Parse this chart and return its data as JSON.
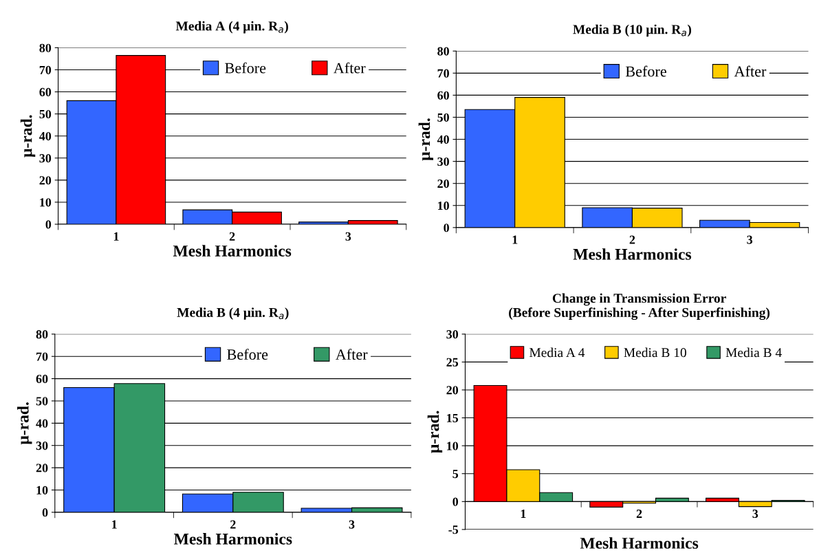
{
  "chart_data": [
    {
      "type": "bar",
      "title": "Media A (4 μin. R$_{a}$)",
      "xlabel": "Mesh Harmonics",
      "ylabel": "μ-rad.",
      "categories": [
        "1",
        "2",
        "3"
      ],
      "ylim": [
        0,
        80
      ],
      "yticks": [
        0,
        10,
        20,
        30,
        40,
        50,
        60,
        70,
        80
      ],
      "grid": "y",
      "legend": "top",
      "series": [
        {
          "name": "Before",
          "color": "#3366ff",
          "values": [
            56,
            6.5,
            1
          ]
        },
        {
          "name": "After",
          "color": "#ff0000",
          "values": [
            76.5,
            5.5,
            1.7
          ]
        }
      ]
    },
    {
      "type": "bar",
      "title": "Media B (10 μin. R$_{a}$)",
      "xlabel": "Mesh Harmonics",
      "ylabel": "μ-rad.",
      "categories": [
        "1",
        "2",
        "3"
      ],
      "ylim": [
        0,
        80
      ],
      "yticks": [
        0,
        10,
        20,
        30,
        40,
        50,
        60,
        70,
        80
      ],
      "grid": "y",
      "legend": "top",
      "series": [
        {
          "name": "Before",
          "color": "#3366ff",
          "values": [
            53.5,
            9,
            3.3
          ]
        },
        {
          "name": "After",
          "color": "#ffcc00",
          "values": [
            59,
            8.8,
            2.3
          ]
        }
      ]
    },
    {
      "type": "bar",
      "title": "Media B (4 μin. R$_{a}$)",
      "xlabel": "Mesh Harmonics",
      "ylabel": "μ-rad.",
      "categories": [
        "1",
        "2",
        "3"
      ],
      "ylim": [
        0,
        80
      ],
      "yticks": [
        0,
        10,
        20,
        30,
        40,
        50,
        60,
        70,
        80
      ],
      "grid": "y",
      "legend": "top",
      "series": [
        {
          "name": "Before",
          "color": "#3366ff",
          "values": [
            56,
            8.2,
            1.8
          ]
        },
        {
          "name": "After",
          "color": "#339966",
          "values": [
            57.8,
            9,
            2
          ]
        }
      ]
    },
    {
      "type": "bar",
      "title": "Change in Transmission Error",
      "subtitle": "(Before Superfinishing - After Superfinishing)",
      "xlabel": "Mesh Harmonics",
      "ylabel": "μ-rad.",
      "categories": [
        "1",
        "2",
        "3"
      ],
      "ylim": [
        -5,
        30
      ],
      "yticks": [
        -5,
        0,
        5,
        10,
        15,
        20,
        25,
        30
      ],
      "grid": "y",
      "legend": "top",
      "series": [
        {
          "name": "Media A 4",
          "color": "#ff0000",
          "values": [
            20.8,
            -1,
            0.6
          ]
        },
        {
          "name": "Media B 10",
          "color": "#ffcc00",
          "values": [
            5.7,
            -0.3,
            -0.9
          ]
        },
        {
          "name": "Media B 4",
          "color": "#339966",
          "values": [
            1.6,
            0.6,
            0.2
          ]
        }
      ]
    }
  ]
}
